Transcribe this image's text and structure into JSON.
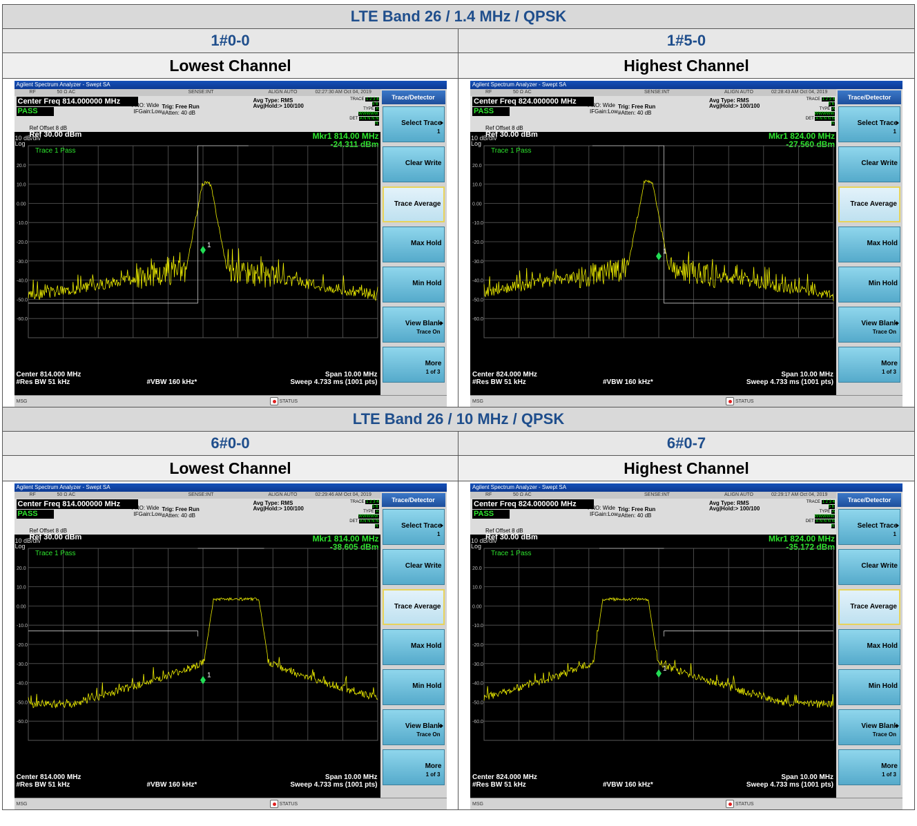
{
  "sections": [
    {
      "band_title": "LTE Band 26 / 1.4 MHz / QPSK",
      "columns": [
        {
          "id": "1#0-0",
          "channel": "Lowest Channel"
        },
        {
          "id": "1#5-0",
          "channel": "Highest Channel"
        }
      ],
      "screens": [
        {
          "window_title": "Agilent Spectrum Analyzer - Swept SA",
          "status_items": [
            "RF",
            "50 Ω  AC",
            "SENSE:INT",
            "ALIGN AUTO",
            "02:27:30 AM Oct 04, 2019"
          ],
          "center_freq": "Center Freq 814.000000 MHz",
          "pass": "PASS",
          "pno": "PNO: Wide",
          "ifgain": "IFGain:Low",
          "trig": "Trig: Free Run",
          "atten": "#Atten: 40 dB",
          "avg_type": "Avg Type: RMS",
          "avg_hold": "Avg|Hold:> 100/100",
          "trace_label": "TRACE",
          "type_label": "TYPE",
          "det_label": "DET",
          "trace_nums": "1 2 3 4 5 6",
          "type_vals": "A WWWWW",
          "det_vals": "A N N N N N",
          "ref_offset": "Ref Offset 8 dB",
          "ref_level": "Ref 30.00 dBm",
          "scale": "10 dB/div",
          "log": "Log",
          "mkr_freq": "Mkr1 814.00 MHz",
          "mkr_level": "-24.311 dBm",
          "trace_pass": "Trace 1 Pass",
          "y_ticks": [
            "20.0",
            "10.0",
            "0.00",
            "-10.0",
            "-20.0",
            "-30.0",
            "-40.0",
            "-50.0",
            "-60.0"
          ],
          "marker_label": "1",
          "center": "Center 814.000 MHz",
          "span": "Span 10.00 MHz",
          "res_bw": "#Res BW 51 kHz",
          "vbw": "#VBW 160 kHz*",
          "sweep": "Sweep  4.733 ms (1001 pts)",
          "msg": "MSG",
          "status": "STATUS",
          "trace_shape": {
            "type": "narrow",
            "peak_offset_mhz": 0.1,
            "peak_dbm": 11.0,
            "floor_dbm": -52.0,
            "marker_dbm": -24.311,
            "limit_dbm": null
          }
        },
        {
          "window_title": "Agilent Spectrum Analyzer - Swept SA",
          "status_items": [
            "RF",
            "50 Ω  AC",
            "SENSE:INT",
            "ALIGN AUTO",
            "02:28:43 AM Oct 04, 2019"
          ],
          "center_freq": "Center Freq 824.000000 MHz",
          "pass": "PASS",
          "pno": "PNO: Wide",
          "ifgain": "IFGain:Low",
          "trig": "Trig: Free Run",
          "atten": "#Atten: 40 dB",
          "avg_type": "Avg Type: RMS",
          "avg_hold": "Avg|Hold:> 100/100",
          "trace_label": "TRACE",
          "type_label": "TYPE",
          "det_label": "DET",
          "trace_nums": "1 2 3 4 5 6",
          "type_vals": "A WWWWW",
          "det_vals": "A N N N N N",
          "ref_offset": "Ref Offset 8 dB",
          "ref_level": "Ref 30.00 dBm",
          "scale": "10 dB/div",
          "log": "Log",
          "mkr_freq": "Mkr1 824.00 MHz",
          "mkr_level": "-27.560 dBm",
          "trace_pass": "Trace 1 Pass",
          "y_ticks": [
            "20.0",
            "10.0",
            "0.00",
            "-10.0",
            "-20.0",
            "-30.0",
            "-40.0",
            "-50.0",
            "-60.0"
          ],
          "marker_label": "1",
          "center": "Center 824.000 MHz",
          "span": "Span 10.00 MHz",
          "res_bw": "#Res BW 51 kHz",
          "vbw": "#VBW 160 kHz*",
          "sweep": "Sweep  4.733 ms (1001 pts)",
          "msg": "MSG",
          "status": "STATUS",
          "trace_shape": {
            "type": "narrow",
            "peak_offset_mhz": -0.3,
            "peak_dbm": 12.0,
            "floor_dbm": -52.0,
            "marker_dbm": -27.56,
            "limit_dbm": null
          }
        }
      ]
    },
    {
      "band_title": "LTE Band 26 / 10 MHz / QPSK",
      "columns": [
        {
          "id": "6#0-0",
          "channel": "Lowest Channel"
        },
        {
          "id": "6#0-7",
          "channel": "Highest Channel"
        }
      ],
      "screens": [
        {
          "window_title": "Agilent Spectrum Analyzer - Swept SA",
          "status_items": [
            "RF",
            "50 Ω  AC",
            "SENSE:INT",
            "ALIGN AUTO",
            "02:29:46 AM Oct 04, 2019"
          ],
          "center_freq": "Center Freq 814.000000 MHz",
          "pass": "PASS",
          "pno": "PNO: Wide",
          "ifgain": "IFGain:Low",
          "trig": "Trig: Free Run",
          "atten": "#Atten: 40 dB",
          "avg_type": "Avg Type: RMS",
          "avg_hold": "Avg|Hold:> 100/100",
          "trace_label": "TRACE",
          "type_label": "TYPE",
          "det_label": "DET",
          "trace_nums": "1 2 3 4 5 6",
          "type_vals": "A WWWWW",
          "det_vals": "A N N N N N",
          "ref_offset": "Ref Offset 8 dB",
          "ref_level": "Ref 30.00 dBm",
          "scale": "10 dB/div",
          "log": "Log",
          "mkr_freq": "Mkr1 814.00 MHz",
          "mkr_level": "-38.605 dBm",
          "trace_pass": "Trace 1 Pass",
          "y_ticks": [
            "20.0",
            "10.0",
            "0.00",
            "-10.0",
            "-20.0",
            "-30.0",
            "-40.0",
            "-50.0",
            "-60.0"
          ],
          "marker_label": "1",
          "center": "Center 814.000 MHz",
          "span": "Span 10.00 MHz",
          "res_bw": "#Res BW 51 kHz",
          "vbw": "#VBW 160 kHz*",
          "sweep": "Sweep  4.733 ms (1001 pts)",
          "msg": "MSG",
          "status": "STATUS",
          "trace_shape": {
            "type": "wide",
            "plateau_start_mhz": 0.3,
            "plateau_end_mhz": 1.6,
            "plateau_dbm": 3.5,
            "floor_dbm": -51.0,
            "marker_dbm": -38.605,
            "limit_dbm": -13.0
          }
        },
        {
          "window_title": "Agilent Spectrum Analyzer - Swept SA",
          "status_items": [
            "RF",
            "50 Ω  AC",
            "SENSE:INT",
            "ALIGN AUTO",
            "02:29:17 AM Oct 04, 2019"
          ],
          "center_freq": "Center Freq 824.000000 MHz",
          "pass": "PASS",
          "pno": "PNO: Wide",
          "ifgain": "IFGain:Low",
          "trig": "Trig: Free Run",
          "atten": "#Atten: 40 dB",
          "avg_type": "Avg Type: RMS",
          "avg_hold": "Avg|Hold:> 100/100",
          "trace_label": "TRACE",
          "type_label": "TYPE",
          "det_label": "DET",
          "trace_nums": "1 2 3 4 5 6",
          "type_vals": "A WWWWW",
          "det_vals": "A N N N N N",
          "ref_offset": "Ref Offset 8 dB",
          "ref_level": "Ref 30.00 dBm",
          "scale": "10 dB/div",
          "log": "Log",
          "mkr_freq": "Mkr1 824.00 MHz",
          "mkr_level": "-35.172 dBm",
          "trace_pass": "Trace 1 Pass",
          "y_ticks": [
            "20.0",
            "10.0",
            "0.00",
            "-10.0",
            "-20.0",
            "-30.0",
            "-40.0",
            "-50.0",
            "-60.0"
          ],
          "marker_label": "1",
          "center": "Center 824.000 MHz",
          "span": "Span 10.00 MHz",
          "res_bw": "#Res BW 51 kHz",
          "vbw": "#VBW 160 kHz*",
          "sweep": "Sweep  4.733 ms (1001 pts)",
          "msg": "MSG",
          "status": "STATUS",
          "trace_shape": {
            "type": "wide",
            "plateau_start_mhz": -1.6,
            "plateau_end_mhz": -0.3,
            "plateau_dbm": 3.5,
            "floor_dbm": -51.0,
            "marker_dbm": -35.172,
            "limit_dbm": -13.0
          }
        }
      ]
    }
  ],
  "menu": {
    "title": "Trace/Detector",
    "keys": [
      {
        "label": "Select Trace",
        "sub": "1",
        "arrow": true
      },
      {
        "label": "Clear Write",
        "sub": "",
        "arrow": false
      },
      {
        "label": "Trace Average",
        "sub": "",
        "arrow": false
      },
      {
        "label": "Max Hold",
        "sub": "",
        "arrow": false
      },
      {
        "label": "Min Hold",
        "sub": "",
        "arrow": false
      },
      {
        "label": "View Blank",
        "sub": "Trace On",
        "arrow": true
      },
      {
        "label": "More",
        "sub": "1 of 3",
        "arrow": false
      }
    ]
  },
  "colors": {
    "trace": "#f0f000",
    "marker": "#22dd55",
    "grid": "#5a5a5a",
    "limit": "#c8c8c8",
    "pass": "#2ee62e",
    "header_blue": "#1f4e8c"
  }
}
